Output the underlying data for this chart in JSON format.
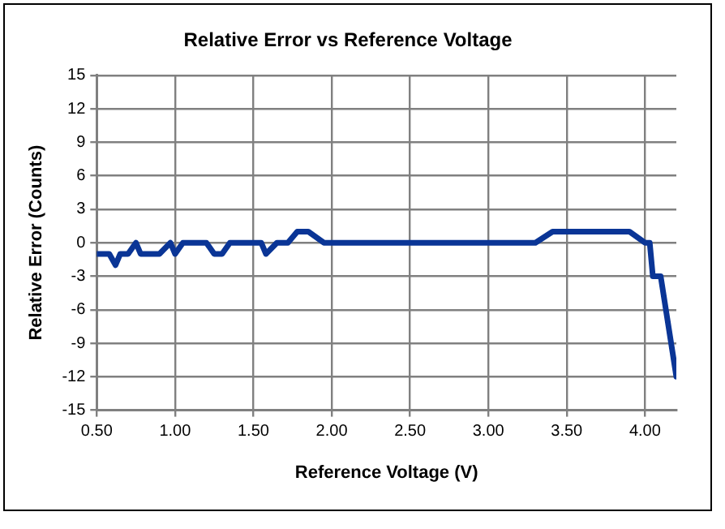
{
  "chart_data": {
    "type": "line",
    "title": "Relative Error vs Reference Voltage",
    "xlabel": "Reference Voltage (V)",
    "ylabel": "Relative Error (Counts)",
    "xlim": [
      0.5,
      4.2
    ],
    "xticks": [
      {
        "value": 0.5,
        "label": "0.50"
      },
      {
        "value": 1,
        "label": "1.00"
      },
      {
        "value": 1.5,
        "label": "1.50"
      },
      {
        "value": 2,
        "label": "2.00"
      },
      {
        "value": 2.5,
        "label": "2.50"
      },
      {
        "value": 3,
        "label": "3.00"
      },
      {
        "value": 3.5,
        "label": "3.50"
      },
      {
        "value": 4,
        "label": "4.00"
      }
    ],
    "ylim": [
      -15,
      15
    ],
    "yticks": [
      -15,
      -12,
      -9,
      -6,
      -3,
      0,
      3,
      6,
      9,
      12,
      15
    ],
    "grid": true,
    "legend": false,
    "marker": "none",
    "line_style": "solid",
    "x": [
      0.5,
      0.55,
      0.58,
      0.62,
      0.65,
      0.7,
      0.75,
      0.78,
      0.85,
      0.9,
      0.97,
      1.0,
      1.05,
      1.1,
      1.2,
      1.25,
      1.3,
      1.35,
      1.55,
      1.58,
      1.65,
      1.72,
      1.78,
      1.85,
      1.95,
      3.25,
      3.3,
      3.41,
      3.85,
      3.9,
      4.0,
      4.03,
      4.05,
      4.1,
      4.2
    ],
    "series": [
      {
        "color": "#0a3596",
        "values": [
          -1,
          -1,
          -1,
          -2,
          -1,
          -1,
          0,
          -1,
          -1,
          -1,
          0,
          -1,
          0,
          0,
          0,
          -1,
          -1,
          0,
          0,
          -1,
          0,
          0,
          1,
          1,
          0,
          0,
          0,
          1,
          1,
          1,
          0,
          0,
          -3,
          -3,
          -12
        ]
      }
    ]
  }
}
